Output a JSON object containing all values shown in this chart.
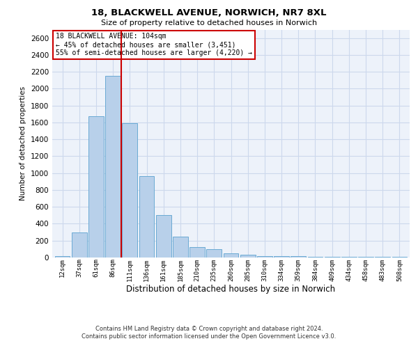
{
  "title_line1": "18, BLACKWELL AVENUE, NORWICH, NR7 8XL",
  "title_line2": "Size of property relative to detached houses in Norwich",
  "xlabel": "Distribution of detached houses by size in Norwich",
  "ylabel": "Number of detached properties",
  "bar_labels": [
    "12sqm",
    "37sqm",
    "61sqm",
    "86sqm",
    "111sqm",
    "136sqm",
    "161sqm",
    "185sqm",
    "210sqm",
    "235sqm",
    "260sqm",
    "285sqm",
    "310sqm",
    "334sqm",
    "359sqm",
    "384sqm",
    "409sqm",
    "434sqm",
    "458sqm",
    "483sqm",
    "508sqm"
  ],
  "bar_values": [
    20,
    295,
    1670,
    2150,
    1590,
    965,
    500,
    245,
    120,
    100,
    50,
    35,
    20,
    15,
    15,
    10,
    10,
    8,
    5,
    5,
    10
  ],
  "bar_color": "#b8d0ea",
  "bar_edge_color": "#6aaad4",
  "grid_color": "#ccd8ec",
  "background_color": "#edf2fa",
  "vline_color": "#cc0000",
  "annotation_text": "18 BLACKWELL AVENUE: 104sqm\n← 45% of detached houses are smaller (3,451)\n55% of semi-detached houses are larger (4,220) →",
  "annotation_box_edgecolor": "#cc0000",
  "ylim": [
    0,
    2700
  ],
  "yticks": [
    0,
    200,
    400,
    600,
    800,
    1000,
    1200,
    1400,
    1600,
    1800,
    2000,
    2200,
    2400,
    2600
  ],
  "footer_line1": "Contains HM Land Registry data © Crown copyright and database right 2024.",
  "footer_line2": "Contains public sector information licensed under the Open Government Licence v3.0."
}
